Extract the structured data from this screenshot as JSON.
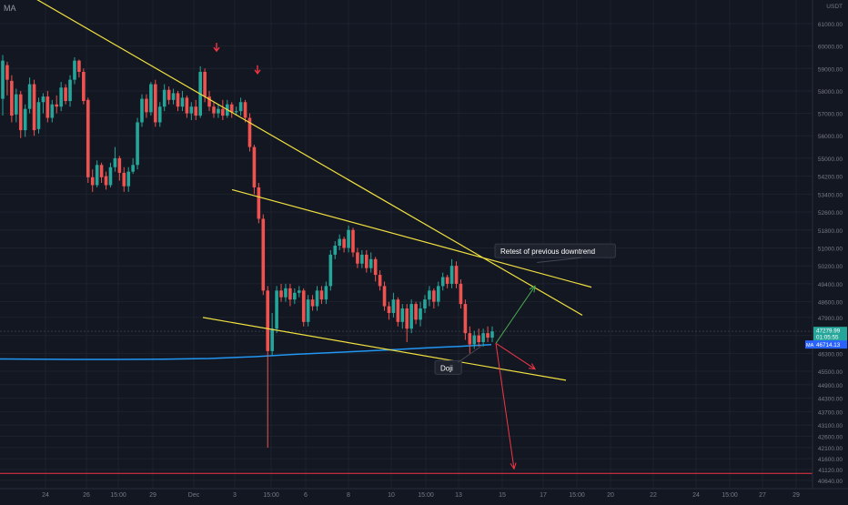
{
  "indicator": {
    "label": "MA"
  },
  "header": {
    "currency": "USDT"
  },
  "chart_data": {
    "type": "candlestick",
    "title": "",
    "xlabel": "",
    "ylabel": "",
    "ylim": [
      40600,
      62100
    ],
    "grid": true,
    "y_ticks": [
      61000,
      60000,
      59000,
      58000,
      57000,
      56000,
      55000,
      54200,
      53400,
      52600,
      51800,
      51000,
      50200,
      49400,
      48600,
      47900,
      47100,
      46300,
      45500,
      44900,
      44300,
      43700,
      43100,
      42600,
      42100,
      41600,
      41120,
      40640
    ],
    "x_ticks": [
      "24",
      "26",
      "15:00",
      "29",
      "Dec",
      "3",
      "15:00",
      "6",
      "8",
      "10",
      "15:00",
      "13",
      "15",
      "17",
      "15:00",
      "20",
      "22",
      "24",
      "15:00",
      "27",
      "29"
    ],
    "price_labels": [
      {
        "text": "47279.99",
        "color": "#26a69a"
      },
      {
        "text": "01:05:55",
        "color": "#26a69a"
      },
      {
        "text": "46714.13",
        "color": "#2962ff",
        "tag": "MA"
      }
    ],
    "moving_average": {
      "name": "MA",
      "color": "#2196f3",
      "points": [
        [
          0,
          46050
        ],
        [
          40,
          46040
        ],
        [
          80,
          46030
        ],
        [
          130,
          46030
        ],
        [
          180,
          46040
        ],
        [
          230,
          46070
        ],
        [
          280,
          46150
        ],
        [
          320,
          46250
        ],
        [
          360,
          46320
        ],
        [
          400,
          46400
        ],
        [
          440,
          46480
        ],
        [
          480,
          46570
        ],
        [
          510,
          46620
        ],
        [
          540,
          46690
        ]
      ]
    },
    "candles": [
      [
        57650,
        59350,
        59600,
        56900
      ],
      [
        59150,
        58500,
        59300,
        57800
      ],
      [
        58450,
        56900,
        58700,
        56600
      ],
      [
        56950,
        57850,
        58100,
        56600
      ],
      [
        57850,
        56250,
        58000,
        55900
      ],
      [
        56250,
        57200,
        57400,
        55950
      ],
      [
        57200,
        58300,
        58600,
        57000
      ],
      [
        58300,
        56250,
        58500,
        56000
      ],
      [
        56300,
        57500,
        57700,
        56100
      ],
      [
        57500,
        57750,
        57900,
        57000
      ],
      [
        57750,
        56800,
        58000,
        56600
      ],
      [
        56800,
        57400,
        57600,
        56600
      ],
      [
        57400,
        57300,
        57800,
        57000
      ],
      [
        57300,
        58150,
        58400,
        57100
      ],
      [
        58150,
        57550,
        58300,
        57400
      ],
      [
        57550,
        58500,
        58700,
        57300
      ],
      [
        58500,
        59350,
        59500,
        58300
      ],
      [
        59350,
        58850,
        59400,
        58600
      ],
      [
        58850,
        57550,
        59000,
        57400
      ],
      [
        57600,
        54150,
        57700,
        53900
      ],
      [
        54150,
        53800,
        54500,
        53500
      ],
      [
        53800,
        54700,
        54900,
        53700
      ],
      [
        54700,
        54150,
        54800,
        53900
      ],
      [
        54200,
        53800,
        54400,
        53600
      ],
      [
        53800,
        54600,
        54800,
        53700
      ],
      [
        54600,
        55000,
        55500,
        54400
      ],
      [
        55000,
        54350,
        55100,
        54000
      ],
      [
        54350,
        53750,
        54600,
        53500
      ],
      [
        53750,
        54400,
        54600,
        53500
      ],
      [
        54400,
        54700,
        55000,
        54300
      ],
      [
        54700,
        56600,
        56800,
        54500
      ],
      [
        56600,
        57650,
        57850,
        56400
      ],
      [
        57650,
        57050,
        57850,
        56800
      ],
      [
        57050,
        58300,
        58400,
        56900
      ],
      [
        58300,
        56600,
        58500,
        56400
      ],
      [
        56600,
        57300,
        57500,
        56400
      ],
      [
        57300,
        58050,
        58300,
        57100
      ],
      [
        58050,
        57600,
        58200,
        57400
      ],
      [
        57600,
        57900,
        58100,
        57400
      ],
      [
        57900,
        57300,
        58000,
        57100
      ],
      [
        57300,
        57700,
        58000,
        57100
      ],
      [
        57700,
        57000,
        57800,
        56800
      ],
      [
        57000,
        57300,
        57500,
        56700
      ],
      [
        57300,
        56900,
        57600,
        56700
      ],
      [
        56900,
        58850,
        59100,
        56800
      ],
      [
        58850,
        57750,
        59000,
        57500
      ],
      [
        57750,
        57300,
        58000,
        57100
      ],
      [
        57300,
        57000,
        57500,
        56800
      ],
      [
        57000,
        57200,
        57400,
        56800
      ],
      [
        57200,
        56900,
        57600,
        56700
      ],
      [
        56900,
        57400,
        57600,
        56800
      ],
      [
        57400,
        57050,
        57500,
        56800
      ],
      [
        57050,
        57100,
        57300,
        56900
      ],
      [
        57100,
        57500,
        57700,
        56900
      ],
      [
        57500,
        56800,
        57600,
        56600
      ],
      [
        56800,
        55500,
        57000,
        55300
      ],
      [
        55500,
        53700,
        55600,
        53400
      ],
      [
        53700,
        52300,
        53900,
        52100
      ],
      [
        52300,
        49100,
        52500,
        48900
      ],
      [
        49100,
        46400,
        49300,
        42100
      ],
      [
        46400,
        47400,
        48100,
        46200
      ],
      [
        47400,
        49100,
        49300,
        47200
      ],
      [
        49100,
        48800,
        49400,
        48600
      ],
      [
        48800,
        49200,
        49400,
        48600
      ],
      [
        49200,
        48700,
        49400,
        48400
      ],
      [
        48700,
        49000,
        49200,
        48500
      ],
      [
        49000,
        49100,
        49300,
        48800
      ],
      [
        49100,
        47700,
        49200,
        47500
      ],
      [
        47700,
        48700,
        48900,
        47500
      ],
      [
        48700,
        48400,
        48900,
        48200
      ],
      [
        48400,
        49100,
        49300,
        48200
      ],
      [
        49100,
        48700,
        49300,
        48500
      ],
      [
        48700,
        49300,
        49500,
        48500
      ],
      [
        49300,
        50700,
        50900,
        49100
      ],
      [
        50700,
        51100,
        51300,
        50500
      ],
      [
        51100,
        51400,
        51600,
        50900
      ],
      [
        51400,
        51000,
        51500,
        50800
      ],
      [
        51000,
        51800,
        52000,
        50800
      ],
      [
        51800,
        50800,
        51900,
        50600
      ],
      [
        50800,
        50300,
        51000,
        50100
      ],
      [
        50300,
        50700,
        50900,
        50100
      ],
      [
        50700,
        50100,
        50900,
        49900
      ],
      [
        50100,
        50500,
        50800,
        49900
      ],
      [
        50500,
        49800,
        50600,
        49500
      ],
      [
        49800,
        49300,
        50000,
        49100
      ],
      [
        49300,
        48400,
        49500,
        48200
      ],
      [
        48400,
        48100,
        48600,
        47800
      ],
      [
        48100,
        48700,
        49000,
        47900
      ],
      [
        48700,
        47700,
        48800,
        47500
      ],
      [
        47700,
        48300,
        48500,
        47400
      ],
      [
        48300,
        47400,
        48500,
        46800
      ],
      [
        47400,
        48500,
        48700,
        47200
      ],
      [
        48500,
        47800,
        48600,
        47600
      ],
      [
        47800,
        48300,
        48600,
        47500
      ],
      [
        48300,
        48700,
        48900,
        48100
      ],
      [
        48700,
        49100,
        49300,
        48400
      ],
      [
        49100,
        48600,
        49200,
        48300
      ],
      [
        48600,
        49300,
        49500,
        48400
      ],
      [
        49300,
        49700,
        49900,
        49100
      ],
      [
        49700,
        49400,
        49800,
        49200
      ],
      [
        49400,
        50200,
        50500,
        49200
      ],
      [
        50200,
        49400,
        50400,
        49200
      ],
      [
        49400,
        48500,
        49600,
        48300
      ],
      [
        48500,
        47200,
        48700,
        46900
      ],
      [
        47200,
        46700,
        47500,
        46300
      ],
      [
        46700,
        47100,
        47300,
        46500
      ],
      [
        47100,
        46800,
        47400,
        46600
      ],
      [
        46800,
        47200,
        47400,
        46600
      ],
      [
        47200,
        47000,
        47500,
        46800
      ],
      [
        47000,
        47280,
        47500,
        46800
      ]
    ],
    "trendlines": [
      {
        "name": "upper-downtrend",
        "color": "#f0e040",
        "from": [
          -20,
          63500
        ],
        "to": [
          640,
          48000
        ]
      },
      {
        "name": "channel-top",
        "color": "#f0e040",
        "from": [
          255,
          53600
        ],
        "to": [
          650,
          49250
        ]
      },
      {
        "name": "channel-bottom",
        "color": "#f0e040",
        "from": [
          223,
          47900
        ],
        "to": [
          622,
          45100
        ]
      }
    ],
    "projections": [
      {
        "name": "bullish-path",
        "color": "#4caf50",
        "from": [
          545,
          46750
        ],
        "to": [
          588,
          49300
        ]
      },
      {
        "name": "bearish-path-short",
        "color": "#f23645",
        "from": [
          545,
          46750
        ],
        "to": [
          588,
          45600
        ]
      },
      {
        "name": "bearish-path-long",
        "color": "#f23645",
        "from": [
          545,
          46750
        ],
        "to": [
          565,
          41150
        ]
      }
    ],
    "markers": [
      {
        "name": "down-arrow-1",
        "color": "#f23645",
        "x": 238,
        "price": 59900
      },
      {
        "name": "down-arrow-2",
        "color": "#f23645",
        "x": 283,
        "price": 58900
      }
    ],
    "horizontal_lines": [
      {
        "name": "support-line",
        "color": "#f23645",
        "price": 40950
      }
    ],
    "annotations": [
      {
        "text": "Retest of previous downtrend",
        "at": [
          544,
          50850
        ],
        "pointer_to": [
          590,
          50350
        ]
      },
      {
        "text": "Doji",
        "at": [
          478,
          45650
        ],
        "pointer_to": [
          530,
          46650
        ]
      }
    ]
  }
}
